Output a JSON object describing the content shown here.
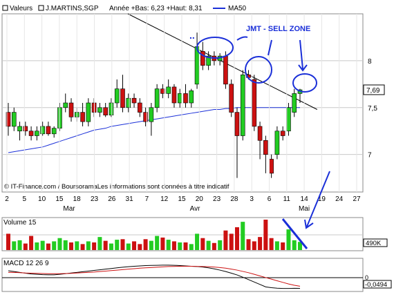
{
  "header": {
    "valeurs_label": "Valeurs",
    "symbol": "J.MARTINS,SGP",
    "range_text": "Année +Bas: 6,23 +Haut: 8,31",
    "ma_label": "MA50"
  },
  "watermark": "© IT-Finance.com / BoursoramaLes informations sont données à titre indicatif",
  "annotation": {
    "sell_zone": "JMT - SELL ZONE",
    "dots": "..",
    "colors": {
      "ink": "#1a2fd8"
    }
  },
  "price_axis": {
    "labels": [
      "8",
      "7,5",
      "7"
    ],
    "levels": [
      8,
      7.5,
      7
    ],
    "current_label": "7,69",
    "current_value": 7.69
  },
  "x_axis": {
    "day_labels": [
      "2",
      "5",
      "10",
      "15",
      "18",
      "23",
      "26",
      "31",
      "7",
      "12",
      "15",
      "20",
      "23",
      "28",
      "3",
      "6",
      "11",
      "14",
      "19",
      "24",
      "27"
    ],
    "month_labels": [
      "Mar",
      "Avr",
      "Mai"
    ]
  },
  "volume_panel": {
    "title": "Volume 15",
    "axis_label": "490K"
  },
  "macd_panel": {
    "title": "MACD 12 26 9",
    "axis_label_top": "0",
    "axis_label_value": "-0,0494"
  },
  "colors": {
    "up": "#22cc22",
    "down": "#cc1111",
    "ma50": "#1a2fd8",
    "trend": "#000000",
    "grid": "#c8c8c8"
  },
  "chart_data": [
    {
      "type": "candlestick",
      "title": "J.MARTINS,SGP",
      "overlay": "MA50",
      "ylim": [
        6.6,
        8.5
      ],
      "ticks_y": [
        7,
        7.5,
        8
      ],
      "candles": [
        [
          7.45,
          7.55,
          7.2,
          7.3
        ],
        [
          7.3,
          7.5,
          7.25,
          7.45
        ],
        [
          7.25,
          7.35,
          7.15,
          7.3
        ],
        [
          7.3,
          7.35,
          7.2,
          7.25
        ],
        [
          7.25,
          7.3,
          7.15,
          7.2
        ],
        [
          7.2,
          7.3,
          7.15,
          7.25
        ],
        [
          7.22,
          7.35,
          7.2,
          7.3
        ],
        [
          7.3,
          7.35,
          7.2,
          7.22
        ],
        [
          7.22,
          7.3,
          7.18,
          7.28
        ],
        [
          7.28,
          7.55,
          7.25,
          7.5
        ],
        [
          7.5,
          7.65,
          7.45,
          7.55
        ],
        [
          7.55,
          7.6,
          7.35,
          7.4
        ],
        [
          7.4,
          7.5,
          7.35,
          7.45
        ],
        [
          7.45,
          7.55,
          7.3,
          7.35
        ],
        [
          7.35,
          7.6,
          7.3,
          7.55
        ],
        [
          7.55,
          7.6,
          7.4,
          7.45
        ],
        [
          7.45,
          7.55,
          7.4,
          7.5
        ],
        [
          7.5,
          7.55,
          7.4,
          7.42
        ],
        [
          7.42,
          7.6,
          7.4,
          7.55
        ],
        [
          7.55,
          7.8,
          7.5,
          7.7
        ],
        [
          7.7,
          7.85,
          7.45,
          7.5
        ],
        [
          7.5,
          7.65,
          7.45,
          7.6
        ],
        [
          7.6,
          7.65,
          7.5,
          7.55
        ],
        [
          7.55,
          7.6,
          7.4,
          7.45
        ],
        [
          7.45,
          7.5,
          7.3,
          7.35
        ],
        [
          7.35,
          7.55,
          7.2,
          7.5
        ],
        [
          7.5,
          7.75,
          7.45,
          7.7
        ],
        [
          7.7,
          7.75,
          7.6,
          7.65
        ],
        [
          7.65,
          7.8,
          7.6,
          7.72
        ],
        [
          7.72,
          7.75,
          7.5,
          7.55
        ],
        [
          7.55,
          7.7,
          7.5,
          7.65
        ],
        [
          7.65,
          7.75,
          7.5,
          7.55
        ],
        [
          7.55,
          7.7,
          7.5,
          7.68
        ],
        [
          7.75,
          8.3,
          7.7,
          8.15
        ],
        [
          8.1,
          8.2,
          7.9,
          7.95
        ],
        [
          7.95,
          8.1,
          7.9,
          8.05
        ],
        [
          8.05,
          8.1,
          7.95,
          8.0
        ],
        [
          8.0,
          8.08,
          7.95,
          8.05
        ],
        [
          8.05,
          8.1,
          7.7,
          7.75
        ],
        [
          7.75,
          7.8,
          7.4,
          7.45
        ],
        [
          7.45,
          7.5,
          6.75,
          7.2
        ],
        [
          7.2,
          7.9,
          7.15,
          7.85
        ],
        [
          7.85,
          7.9,
          7.8,
          7.82
        ],
        [
          7.8,
          7.85,
          7.25,
          7.3
        ],
        [
          7.3,
          7.35,
          6.95,
          7.15
        ],
        [
          7.15,
          7.2,
          6.8,
          7.0
        ],
        [
          6.95,
          7.0,
          6.75,
          6.8
        ],
        [
          7.0,
          7.3,
          6.95,
          7.25
        ],
        [
          7.25,
          7.3,
          7.15,
          7.2
        ],
        [
          7.25,
          7.55,
          7.2,
          7.5
        ],
        [
          7.45,
          7.7,
          7.4,
          7.65
        ],
        [
          7.65,
          7.7,
          7.55,
          7.69
        ]
      ],
      "ma50": [
        7.02,
        7.03,
        7.04,
        7.05,
        7.06,
        7.07,
        7.08,
        7.1,
        7.12,
        7.14,
        7.16,
        7.18,
        7.2,
        7.22,
        7.24,
        7.26,
        7.27,
        7.28,
        7.3,
        7.31,
        7.32,
        7.33,
        7.34,
        7.35,
        7.36,
        7.37,
        7.38,
        7.39,
        7.4,
        7.41,
        7.42,
        7.43,
        7.44,
        7.45,
        7.46,
        7.47,
        7.48,
        7.48,
        7.49,
        7.49,
        7.5,
        7.5,
        7.5,
        7.5,
        7.5,
        7.5,
        7.5,
        7.5,
        7.5,
        7.5,
        7.5,
        7.5
      ],
      "trendline": {
        "from_index": 20,
        "from_value": 8.62,
        "to_index": 54,
        "to_value": 7.48
      }
    },
    {
      "type": "bar",
      "title": "Volume 15",
      "values": [
        150,
        80,
        90,
        60,
        130,
        70,
        85,
        60,
        80,
        110,
        90,
        70,
        80,
        55,
        80,
        70,
        120,
        85,
        60,
        95,
        100,
        60,
        80,
        55,
        100,
        85,
        130,
        115,
        95,
        80,
        70,
        70,
        55,
        150,
        110,
        85,
        65,
        90,
        180,
        150,
        210,
        260,
        100,
        80,
        120,
        280,
        110,
        80,
        70,
        190,
        90,
        75
      ],
      "colors_by_candle": true
    },
    {
      "type": "line",
      "title": "MACD 12 26 9",
      "series": [
        {
          "values": [
            0.06,
            0.055,
            0.05,
            0.045,
            0.04,
            0.038,
            0.036,
            0.035,
            0.035,
            0.038,
            0.042,
            0.046,
            0.05,
            0.054,
            0.058,
            0.062,
            0.066,
            0.07,
            0.074,
            0.078,
            0.082,
            0.085,
            0.088,
            0.09,
            0.092,
            0.093,
            0.094,
            0.095,
            0.095,
            0.094,
            0.092,
            0.09,
            0.088,
            0.086,
            0.083,
            0.078,
            0.072,
            0.064,
            0.055,
            0.045,
            0.034,
            0.02,
            0.005,
            -0.01,
            -0.025,
            -0.04,
            -0.045,
            -0.048,
            -0.05,
            -0.05,
            -0.049,
            -0.0494
          ]
        },
        {
          "values": [
            0.05,
            0.05,
            0.048,
            0.046,
            0.045,
            0.044,
            0.043,
            0.042,
            0.042,
            0.042,
            0.043,
            0.044,
            0.046,
            0.048,
            0.05,
            0.052,
            0.055,
            0.058,
            0.061,
            0.064,
            0.067,
            0.07,
            0.073,
            0.076,
            0.078,
            0.08,
            0.082,
            0.084,
            0.086,
            0.087,
            0.088,
            0.088,
            0.088,
            0.087,
            0.086,
            0.085,
            0.083,
            0.08,
            0.076,
            0.07,
            0.064,
            0.056,
            0.048,
            0.038,
            0.028,
            0.018,
            0.008,
            -0.002,
            -0.012,
            -0.022,
            -0.03,
            -0.036
          ]
        }
      ]
    }
  ]
}
